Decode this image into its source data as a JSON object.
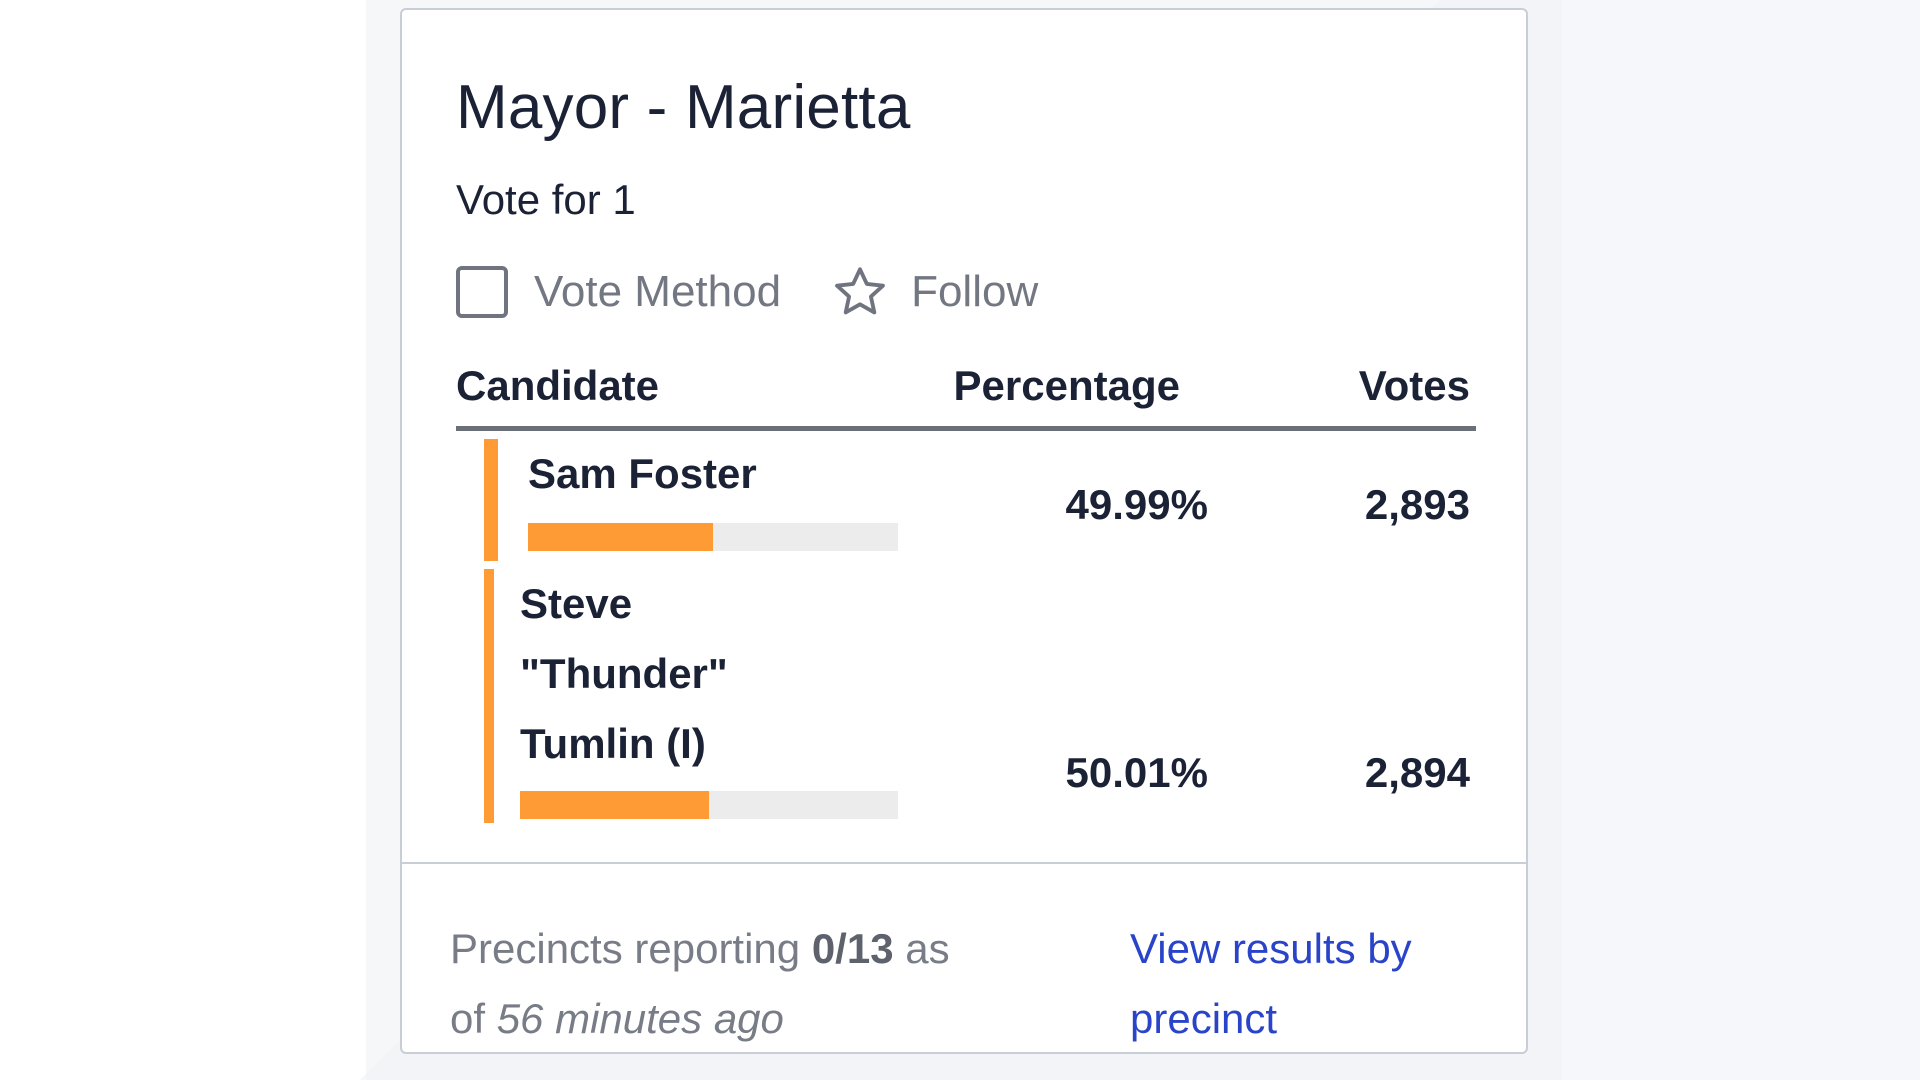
{
  "race": {
    "title": "Mayor - Marietta",
    "subtitle": "Vote for 1"
  },
  "controls": {
    "vote_method_label": "Vote Method",
    "follow_label": "Follow",
    "star_icon": "star-outline-icon"
  },
  "table": {
    "headers": {
      "candidate": "Candidate",
      "percentage": "Percentage",
      "votes": "Votes"
    },
    "rows": [
      {
        "name": "Sam Foster",
        "percentage": "49.99%",
        "votes": "2,893",
        "bar_fill": 0.4999
      },
      {
        "name_lines": [
          "Steve",
          "\"Thunder\"",
          "Tumlin (I)"
        ],
        "percentage": "50.01%",
        "votes": "2,894",
        "bar_fill": 0.5001
      }
    ]
  },
  "footer": {
    "precincts_prefix": "Precincts reporting",
    "precincts_value": "0/13",
    "precincts_mid": "as of",
    "precincts_time": "56 minutes ago",
    "link_label": "View results by precinct"
  },
  "colors": {
    "accent": "#ff9b35",
    "link": "#2a44c9",
    "bar_track": "#ececec"
  }
}
